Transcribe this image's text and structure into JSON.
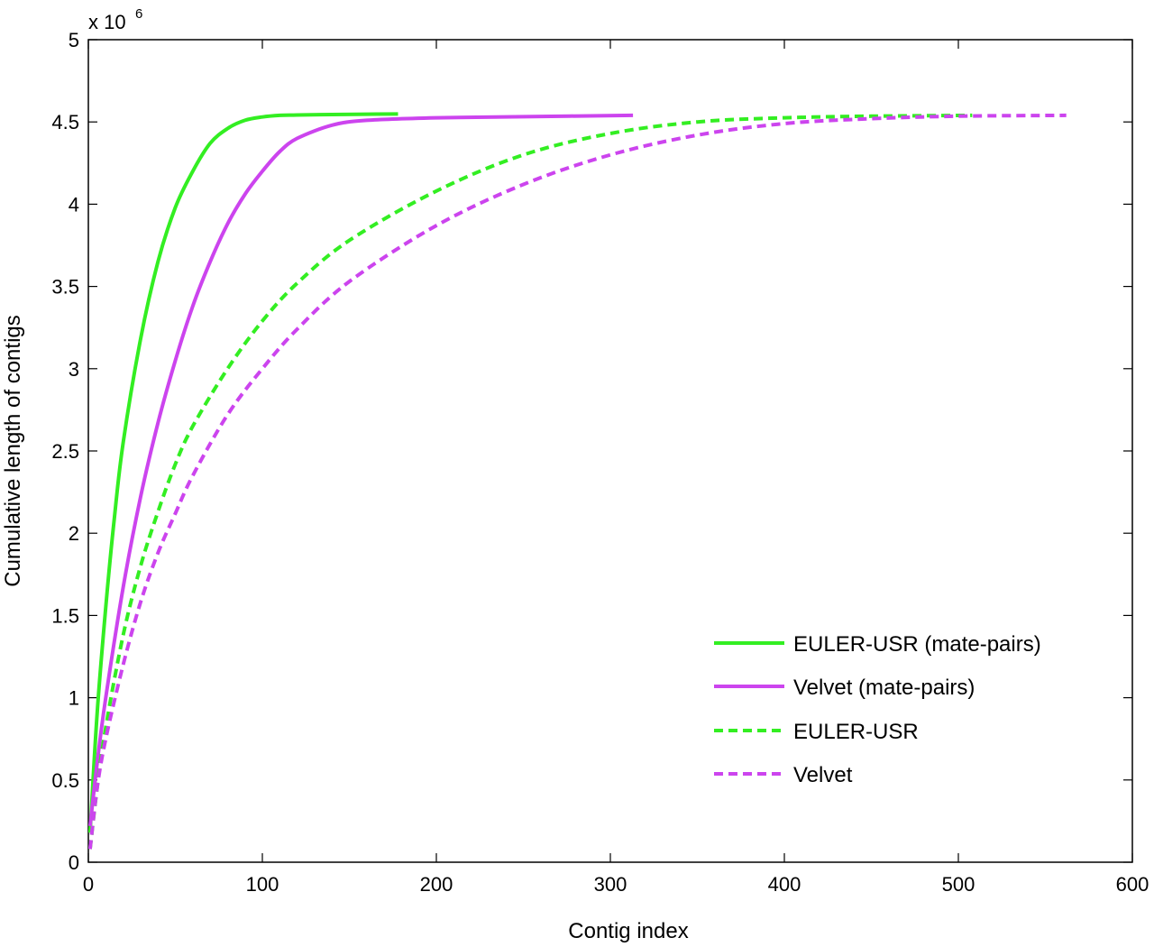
{
  "chart_data": {
    "type": "line",
    "xlabel": "Contig index",
    "ylabel": "Cumulative length of contigs",
    "y_multiplier_base": "x 10",
    "y_multiplier_exp": "6",
    "xlim": [
      0,
      600
    ],
    "ylim": [
      0,
      5
    ],
    "xticks": [
      0,
      100,
      200,
      300,
      400,
      500,
      600
    ],
    "xtick_labels": [
      "0",
      "100",
      "200",
      "300",
      "400",
      "500",
      "600"
    ],
    "yticks": [
      0,
      0.5,
      1,
      1.5,
      2,
      2.5,
      3,
      3.5,
      4,
      4.5,
      5
    ],
    "ytick_labels": [
      "0",
      "0.5",
      "1",
      "1.5",
      "2",
      "2.5",
      "3",
      "3.5",
      "4",
      "4.5",
      "5"
    ],
    "grid": false,
    "legend_position": "lower-right",
    "series": [
      {
        "name": "EULER-USR (mate-pairs)",
        "color": "#33ee22",
        "style": "solid",
        "x": [
          1,
          5,
          10,
          15,
          20,
          30,
          40,
          50,
          60,
          70,
          80,
          90,
          100,
          110,
          120,
          140,
          160,
          178
        ],
        "y": [
          0.18,
          0.9,
          1.55,
          2.1,
          2.55,
          3.18,
          3.65,
          3.98,
          4.2,
          4.37,
          4.46,
          4.51,
          4.53,
          4.54,
          4.542,
          4.545,
          4.547,
          4.548
        ]
      },
      {
        "name": "Velvet (mate-pairs)",
        "color": "#cc44ee",
        "style": "solid",
        "x": [
          1,
          5,
          10,
          20,
          30,
          40,
          50,
          60,
          70,
          80,
          90,
          100,
          110,
          120,
          140,
          160,
          200,
          250,
          313
        ],
        "y": [
          0.22,
          0.6,
          1.0,
          1.67,
          2.22,
          2.67,
          3.05,
          3.38,
          3.65,
          3.88,
          4.06,
          4.2,
          4.32,
          4.4,
          4.48,
          4.51,
          4.525,
          4.532,
          4.54
        ]
      },
      {
        "name": "EULER-USR",
        "color": "#33ee22",
        "style": "dashed",
        "x": [
          1,
          5,
          10,
          20,
          30,
          40,
          50,
          60,
          80,
          100,
          120,
          150,
          200,
          250,
          300,
          350,
          400,
          450,
          508
        ],
        "y": [
          0.08,
          0.45,
          0.82,
          1.38,
          1.8,
          2.13,
          2.42,
          2.65,
          3.0,
          3.29,
          3.52,
          3.78,
          4.08,
          4.3,
          4.43,
          4.5,
          4.525,
          4.535,
          4.54
        ]
      },
      {
        "name": "Velvet",
        "color": "#cc44ee",
        "style": "dashed",
        "x": [
          1,
          5,
          10,
          20,
          30,
          40,
          50,
          60,
          80,
          100,
          120,
          150,
          200,
          250,
          300,
          350,
          400,
          450,
          500,
          562
        ],
        "y": [
          0.08,
          0.45,
          0.75,
          1.2,
          1.58,
          1.88,
          2.12,
          2.35,
          2.72,
          3.0,
          3.24,
          3.53,
          3.87,
          4.12,
          4.3,
          4.42,
          4.49,
          4.52,
          4.535,
          4.54
        ]
      }
    ]
  }
}
